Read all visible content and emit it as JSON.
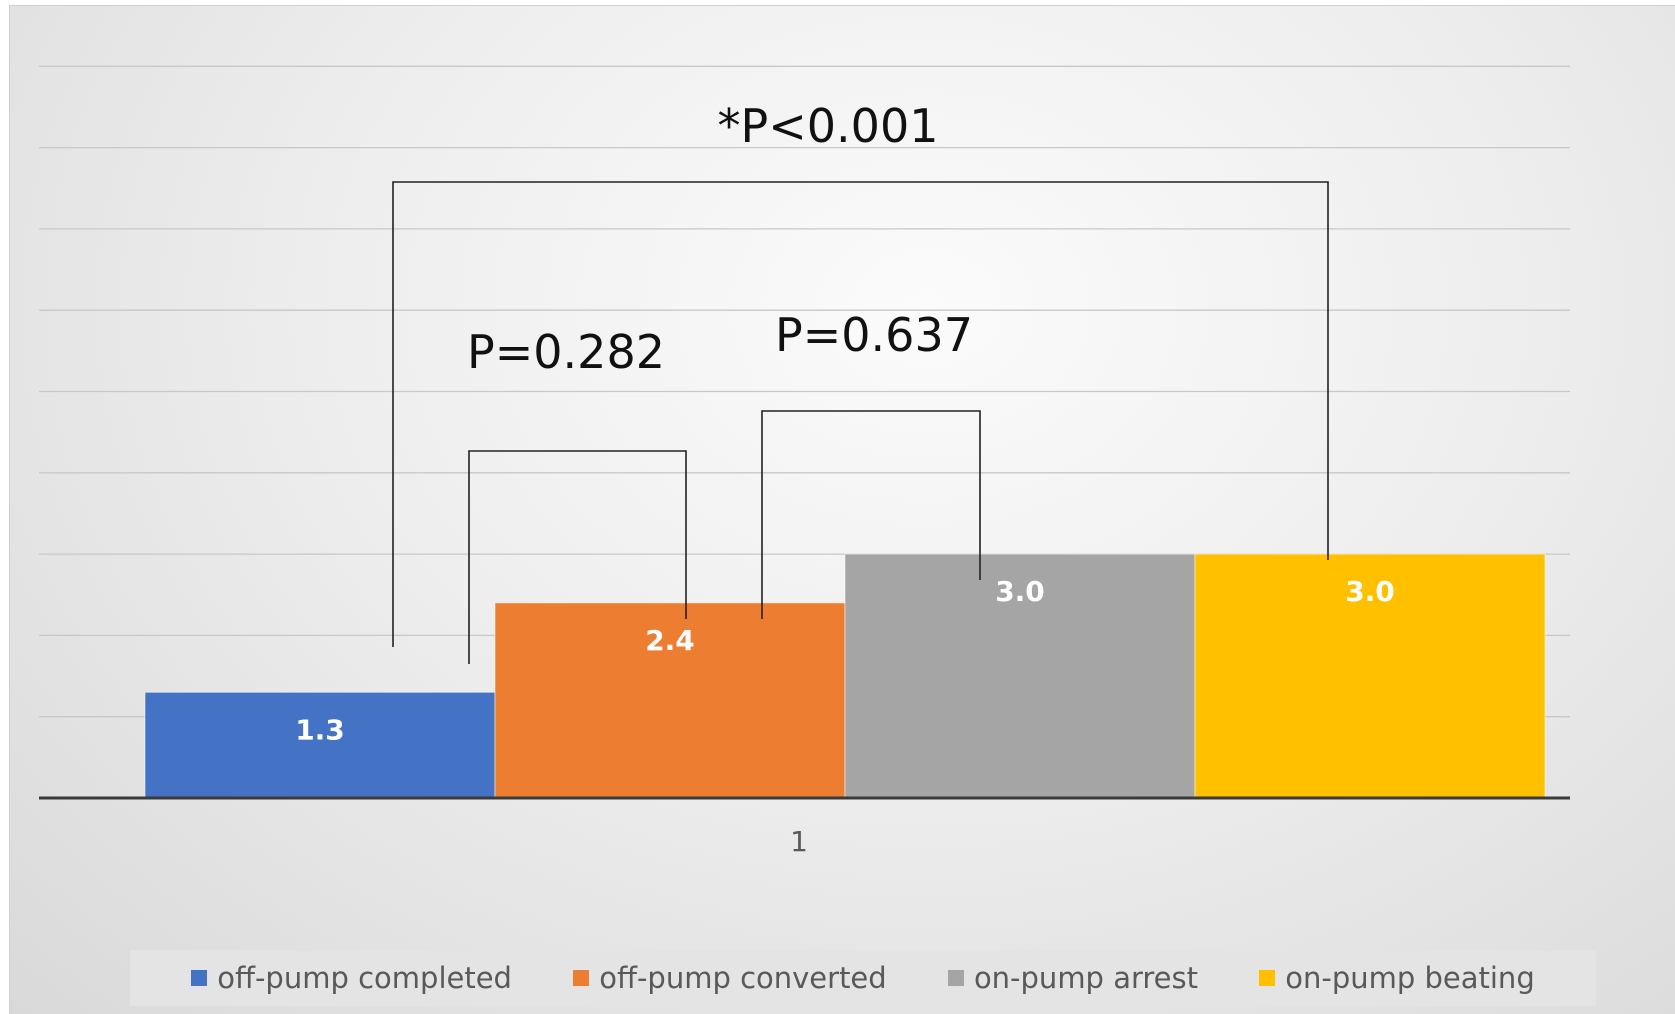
{
  "chart_data": {
    "type": "bar",
    "title": "",
    "xlabel": "",
    "ylabel": "",
    "categories": [
      "1"
    ],
    "ylim": [
      0,
      10
    ],
    "gridlines": [
      0,
      1,
      2,
      3,
      4,
      5,
      6,
      7,
      8,
      9
    ],
    "grid": true,
    "legend_position": "bottom",
    "series": [
      {
        "name": "off-pump completed",
        "values": [
          1.3
        ],
        "label": "1.3",
        "color": "#4472c4"
      },
      {
        "name": "off-pump converted",
        "values": [
          2.4
        ],
        "label": "2.4",
        "color": "#ed7d31"
      },
      {
        "name": "on-pump arrest",
        "values": [
          3.0
        ],
        "label": "3.0",
        "color": "#a5a5a5"
      },
      {
        "name": "on-pump beating",
        "values": [
          3.0
        ],
        "label": "3.0",
        "color": "#ffc000"
      }
    ],
    "annotations": [
      {
        "text": "*P<0.001",
        "from_series": 0,
        "to_series": 3
      },
      {
        "text": "P=0.282",
        "from_series": 0,
        "to_series": 1
      },
      {
        "text": "P=0.637",
        "from_series": 1,
        "to_series": 2
      }
    ]
  }
}
